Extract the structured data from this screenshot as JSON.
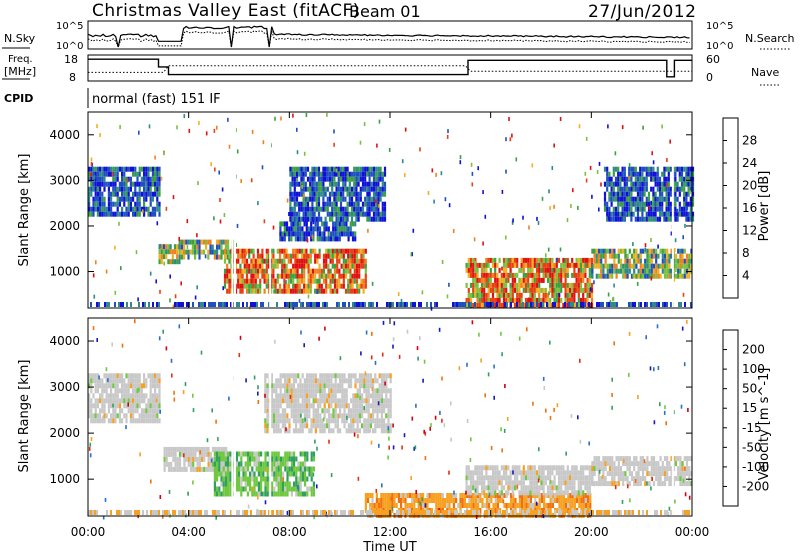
{
  "header": {
    "title": "Christmas Valley East (fitACF)",
    "beam": "Beam 01",
    "date": "27/Jun/2012"
  },
  "aux_panels": {
    "nsky_label": "N.Sky",
    "nsky_ticks": [
      "10^5",
      "10^0"
    ],
    "nsearch_label": "N.Search",
    "nsearch_ticks": [
      "10^5",
      "10^0"
    ],
    "freq_label": "Freq.",
    "freq_unit": "[MHz]",
    "freq_ticks": [
      "18",
      "8"
    ],
    "nave_label": "Nave",
    "nave_ticks": [
      "60",
      "0"
    ],
    "cpid_label": "CPID",
    "cpid_text": "normal (fast) 151 IF"
  },
  "chart_data": [
    {
      "type": "heatmap",
      "name": "power",
      "ylabel": "Slant Range [km]",
      "ylim": [
        200,
        4500
      ],
      "yticks": [
        "1000",
        "2000",
        "3000",
        "4000"
      ],
      "xlim": [
        "00:00",
        "24:00"
      ],
      "colorbar": {
        "label": "Power [dB]",
        "ticks": [
          "4",
          "8",
          "12",
          "16",
          "20",
          "24",
          "28"
        ],
        "colors": [
          "#1010d8",
          "#2050c0",
          "#2e8a8a",
          "#3aa040",
          "#7cc040",
          "#f0b020",
          "#f08020",
          "#e84010",
          "#e01010"
        ]
      },
      "features": [
        {
          "t": [
            0.0,
            2.8
          ],
          "range": [
            2300,
            3300
          ],
          "level": "low"
        },
        {
          "t": [
            2.8,
            3.6
          ],
          "range": [
            1250,
            1600
          ],
          "level": "mid"
        },
        {
          "t": [
            3.6,
            5.8
          ],
          "range": [
            1300,
            1700
          ],
          "level": "mid"
        },
        {
          "t": [
            5.4,
            11.0
          ],
          "range": [
            600,
            1500
          ],
          "level": "high"
        },
        {
          "t": [
            7.6,
            10.6
          ],
          "range": [
            1750,
            2100
          ],
          "level": "low"
        },
        {
          "t": [
            8.0,
            11.8
          ],
          "range": [
            2200,
            3300
          ],
          "level": "low"
        },
        {
          "t": [
            15.0,
            20.0
          ],
          "range": [
            300,
            1300
          ],
          "level": "high"
        },
        {
          "t": [
            20.0,
            24.0
          ],
          "range": [
            900,
            1500
          ],
          "level": "mid"
        },
        {
          "t": [
            20.5,
            24.0
          ],
          "range": [
            2200,
            3300
          ],
          "level": "low"
        }
      ]
    },
    {
      "type": "heatmap",
      "name": "velocity",
      "ylabel": "Slant Range [km]",
      "ylim": [
        200,
        4500
      ],
      "yticks": [
        "1000",
        "2000",
        "3000",
        "4000"
      ],
      "xlabel": "Time UT",
      "xticks": [
        "00:00",
        "04:00",
        "08:00",
        "12:00",
        "16:00",
        "20:00",
        "00:00"
      ],
      "colorbar": {
        "label": "Velocity [m s^-1]",
        "ticks": [
          "200",
          "100",
          "50",
          "15",
          "-15",
          "-50",
          "-100",
          "-200"
        ],
        "colors": [
          "#1818c0",
          "#2a70c8",
          "#30a060",
          "#70c840",
          "#c8c8c8",
          "#f8a020",
          "#f07010",
          "#e03010",
          "#d00010"
        ]
      },
      "features": [
        {
          "t": [
            0.0,
            2.8
          ],
          "range": [
            2300,
            3300
          ],
          "velocity_class": "ground"
        },
        {
          "t": [
            3.0,
            5.5
          ],
          "range": [
            1200,
            1700
          ],
          "velocity_class": "ground"
        },
        {
          "t": [
            5.0,
            9.0
          ],
          "range": [
            700,
            1600
          ],
          "velocity_class": "positive"
        },
        {
          "t": [
            7.0,
            12.0
          ],
          "range": [
            2000,
            3300
          ],
          "velocity_class": "ground"
        },
        {
          "t": [
            11.0,
            20.0
          ],
          "range": [
            250,
            700
          ],
          "velocity_class": "negative"
        },
        {
          "t": [
            15.0,
            20.0
          ],
          "range": [
            700,
            1300
          ],
          "velocity_class": "ground"
        },
        {
          "t": [
            20.0,
            24.0
          ],
          "range": [
            900,
            1500
          ],
          "velocity_class": "ground"
        }
      ]
    }
  ]
}
